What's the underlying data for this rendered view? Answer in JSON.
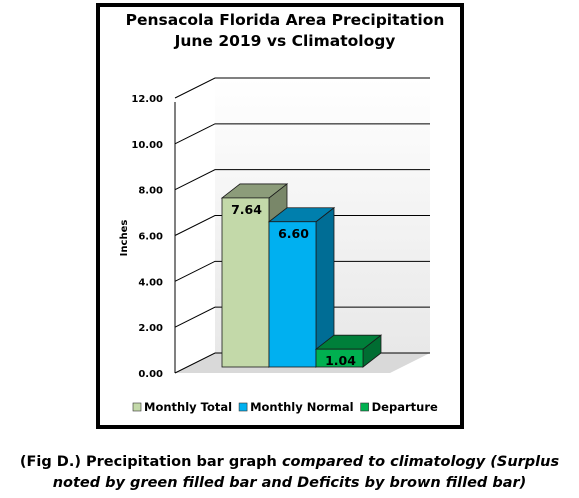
{
  "chart_data": {
    "type": "bar",
    "title_line1": "Pensacola Florida Area Precipitation",
    "title_line2": "June 2019 vs Climatology",
    "ylabel": "Inches",
    "xlabel": "",
    "ylim": [
      0,
      12
    ],
    "yticks": [
      "0.00",
      "2.00",
      "4.00",
      "6.00",
      "8.00",
      "10.00",
      "12.00"
    ],
    "grid": true,
    "legend_position": "bottom",
    "series": [
      {
        "name": "Monthly Total",
        "value": 7.64,
        "label": "7.64",
        "color": "#c3d9a9"
      },
      {
        "name": "Monthly Normal",
        "value": 6.6,
        "label": "6.60",
        "color": "#00b0f0"
      },
      {
        "name": "Departure",
        "value": 1.04,
        "label": "1.04",
        "color": "#00b050"
      }
    ]
  },
  "caption": {
    "part1": "(Fig D.) Precipitation bar graph ",
    "part2": "compared to climatology (Surplus noted by green filled bar and Deficits by brown filled bar)"
  }
}
